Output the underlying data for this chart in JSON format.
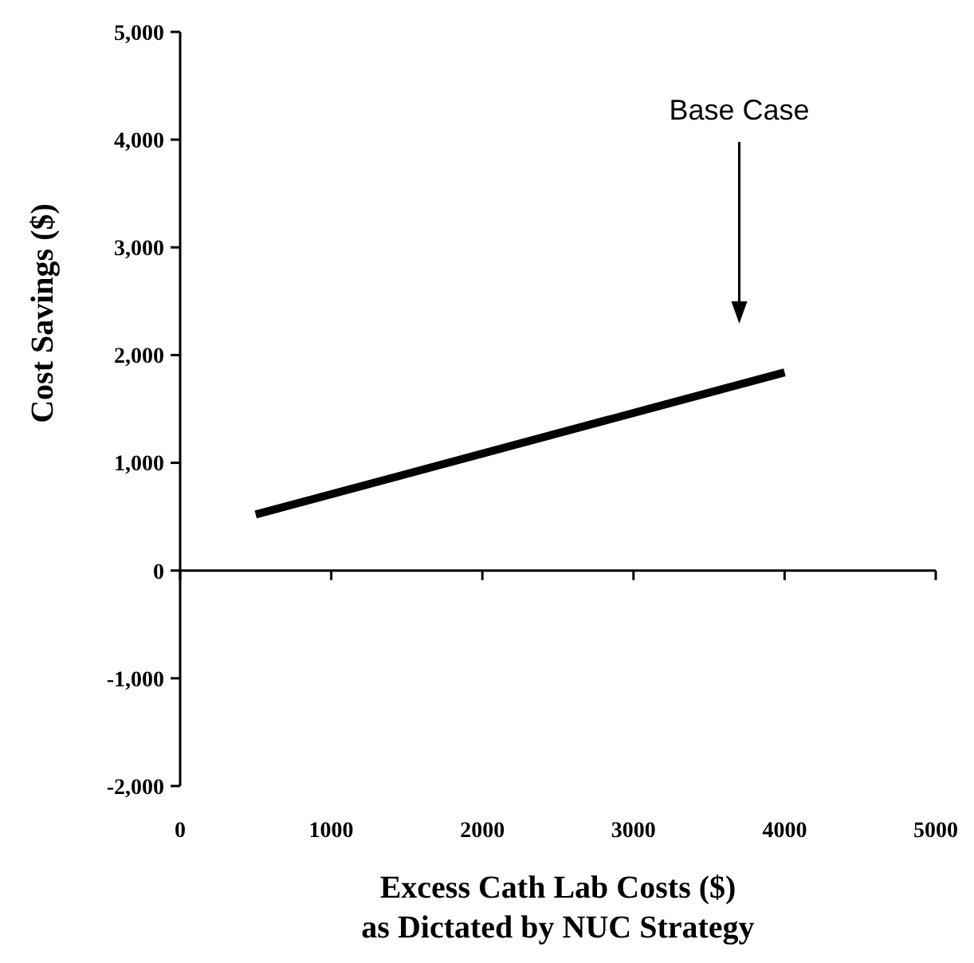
{
  "chart_data": {
    "type": "line",
    "xlabel": "Excess Cath Lab Costs ($)\nas Dictated by NUC Strategy",
    "ylabel": "Cost Savings ($)",
    "x": [
      500,
      4000
    ],
    "series": [
      {
        "color": "#000000",
        "values": [
          520,
          1840
        ]
      }
    ],
    "xlim": [
      0,
      5000
    ],
    "xticks": [
      0,
      1000,
      2000,
      3000,
      4000,
      5000
    ],
    "ylim": [
      -2000,
      5000
    ],
    "yticks": [
      {
        "value": -2000,
        "label": "-2,000"
      },
      {
        "value": -1000,
        "label": "-1,000"
      },
      0,
      {
        "value": 1000,
        "label": "1,000"
      },
      {
        "value": 2000,
        "label": "2,000"
      },
      {
        "value": 3000,
        "label": "3,000"
      },
      {
        "value": 4000,
        "label": "4,000"
      },
      {
        "value": 5000,
        "label": "5,000"
      }
    ],
    "annotations": [
      "Base Case"
    ],
    "marker": "none",
    "line_style": "solid"
  }
}
